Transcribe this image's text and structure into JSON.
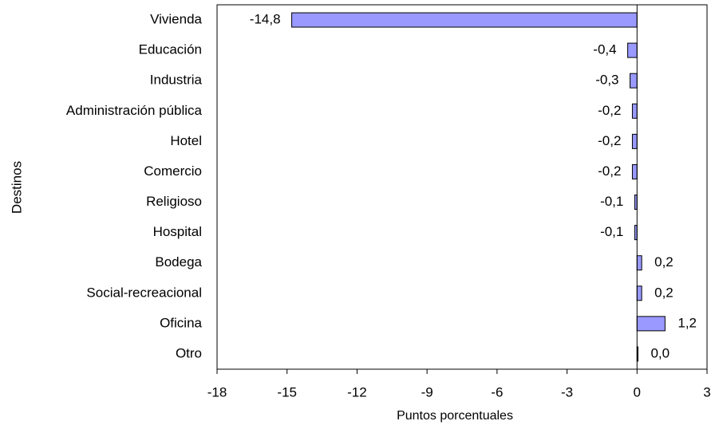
{
  "chart_data": {
    "type": "bar",
    "orientation": "horizontal",
    "y_label": "Destinos",
    "x_label": "Puntos porcentuales",
    "categories": [
      "Vivienda",
      "Educación",
      "Industria",
      "Administración pública",
      "Hotel",
      "Comercio",
      "Religioso",
      "Hospital",
      "Bodega",
      "Social-recreacional",
      "Oficina",
      "Otro"
    ],
    "values": [
      -14.8,
      -0.4,
      -0.3,
      -0.2,
      -0.2,
      -0.2,
      -0.1,
      -0.1,
      0.2,
      0.2,
      1.2,
      0.04
    ],
    "value_labels": [
      "-14,8",
      "-0,4",
      "-0,3",
      "-0,2",
      "-0,2",
      "-0,2",
      "-0,1",
      "-0,1",
      "0,2",
      "0,2",
      "1,2",
      "0,0"
    ],
    "color": "#9999ff",
    "xlim": [
      -18,
      3
    ],
    "xticks": [
      -18,
      -15,
      -12,
      -9,
      -6,
      -3,
      0,
      3
    ],
    "grid": false
  }
}
